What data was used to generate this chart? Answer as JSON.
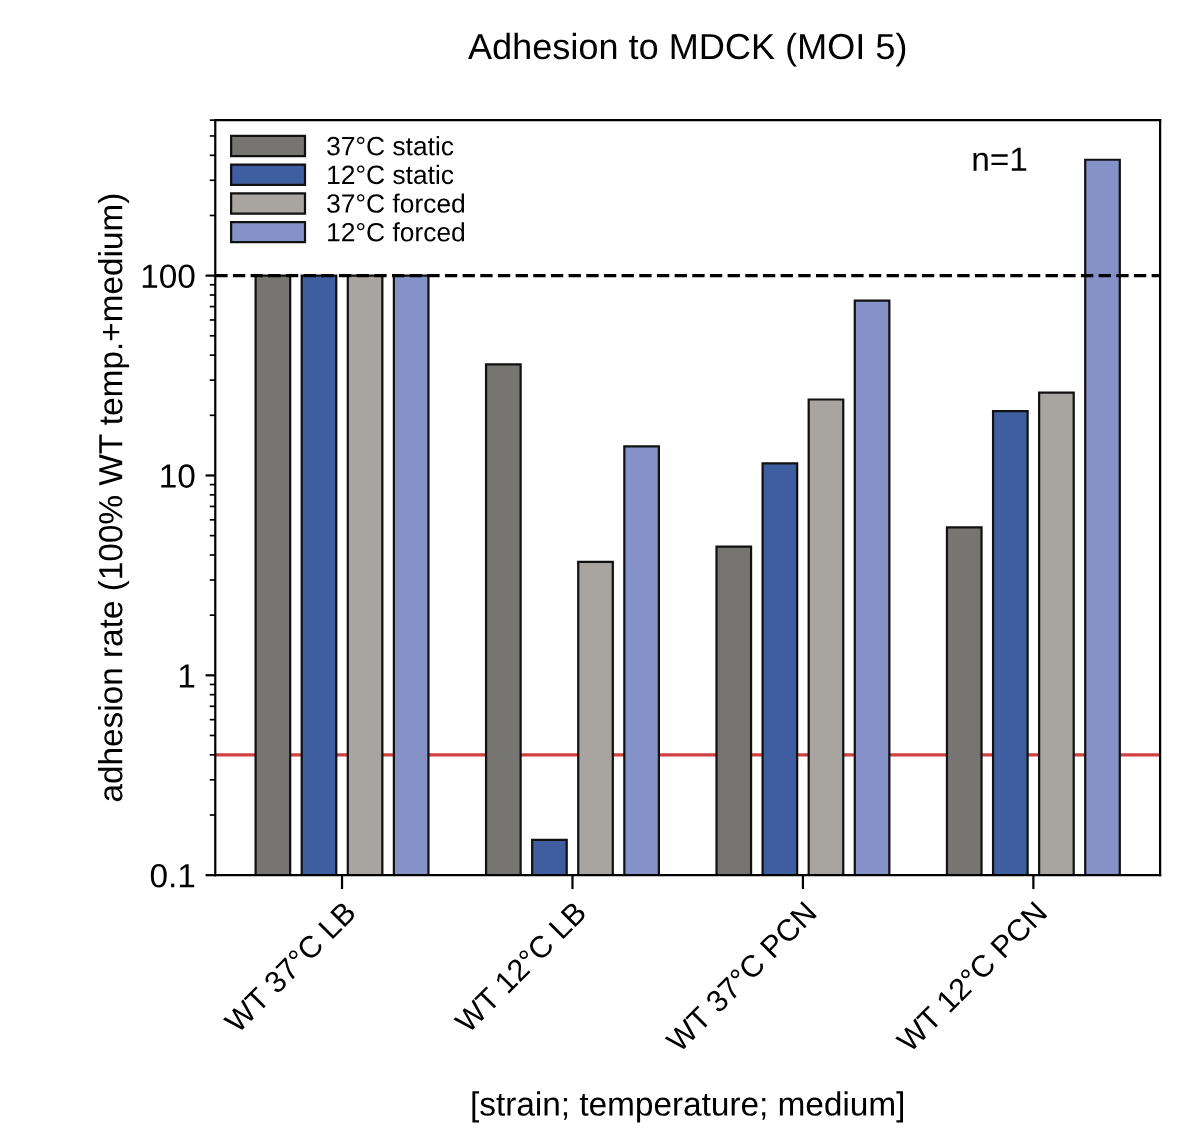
{
  "chart_data": {
    "type": "bar",
    "title": "Adhesion to MDCK (MOI 5)",
    "xlabel": "[strain; temperature; medium]",
    "ylabel": "adhesion rate (100% WT temp.+medium)",
    "categories": [
      "WT 37°C LB",
      "WT 12°C LB",
      "WT 37°C PCN",
      "WT 12°C PCN"
    ],
    "series": [
      {
        "name": "37°C static",
        "color": "#767572",
        "values": [
          100,
          36,
          4.4,
          5.5
        ]
      },
      {
        "name": "12°C static",
        "color": "#3f5ea0",
        "values": [
          100,
          0.15,
          11.5,
          21
        ]
      },
      {
        "name": "37°C forced",
        "color": "#a8a4a0",
        "values": [
          100,
          3.7,
          24,
          26
        ]
      },
      {
        "name": "12°C forced",
        "color": "#8592c8",
        "values": [
          100,
          14,
          75,
          380
        ]
      }
    ],
    "log": true,
    "ylim": [
      0.1,
      600
    ],
    "yticks": [
      0.1,
      1,
      10,
      100
    ],
    "ref_lines": [
      {
        "axis": "y",
        "value": 100,
        "color": "#000000",
        "line_style": "dashed"
      },
      {
        "axis": "y",
        "value": 0.4,
        "color": "#d04040",
        "line_style": "solid"
      }
    ],
    "annotations": [
      "n=1"
    ],
    "legend": "top left",
    "grid": false
  }
}
